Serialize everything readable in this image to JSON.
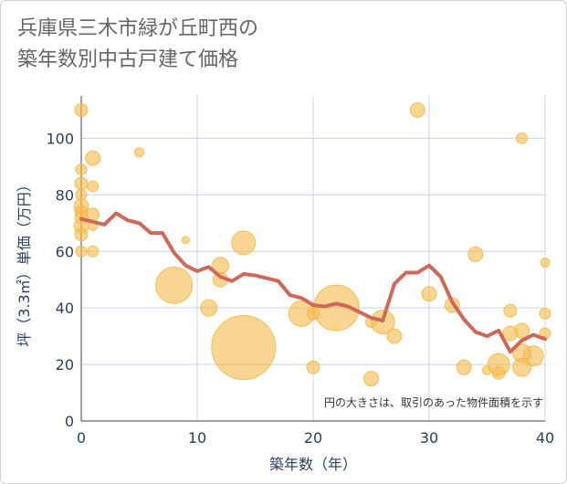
{
  "chart_data": {
    "type": "scatter",
    "title_lines": [
      "兵庫県三木市緑が丘町西の",
      "築年数別中古戸建て価格"
    ],
    "xlabel": "築年数（年）",
    "ylabel": "坪（3.3㎡）単価（万円）",
    "xlim": [
      0,
      40
    ],
    "ylim": [
      0,
      115
    ],
    "x_ticks": [
      0,
      10,
      20,
      30,
      40
    ],
    "y_ticks": [
      0,
      20,
      40,
      60,
      80,
      100
    ],
    "grid": true,
    "annotation": "円の大きさは、取引のあった物件面積を示す",
    "colors": {
      "bubble": "#f5b94a",
      "line": "#d0685a",
      "grid": "#c9d3e6"
    },
    "series": [
      {
        "kind": "bubble",
        "points": [
          {
            "x": 0,
            "y": 110,
            "s": 7
          },
          {
            "x": 0,
            "y": 89,
            "s": 6
          },
          {
            "x": 0,
            "y": 84,
            "s": 7
          },
          {
            "x": 0,
            "y": 80,
            "s": 6
          },
          {
            "x": 0,
            "y": 76,
            "s": 8
          },
          {
            "x": 0,
            "y": 74,
            "s": 7
          },
          {
            "x": 0,
            "y": 72,
            "s": 7
          },
          {
            "x": 0,
            "y": 69,
            "s": 8
          },
          {
            "x": 0,
            "y": 66,
            "s": 7
          },
          {
            "x": 0,
            "y": 60,
            "s": 6
          },
          {
            "x": 1,
            "y": 93,
            "s": 8
          },
          {
            "x": 1,
            "y": 83,
            "s": 6
          },
          {
            "x": 1,
            "y": 73,
            "s": 7
          },
          {
            "x": 1,
            "y": 69,
            "s": 5
          },
          {
            "x": 1,
            "y": 60,
            "s": 6
          },
          {
            "x": 5,
            "y": 95,
            "s": 5
          },
          {
            "x": 8,
            "y": 48,
            "s": 20
          },
          {
            "x": 9,
            "y": 64,
            "s": 4
          },
          {
            "x": 11,
            "y": 40,
            "s": 9
          },
          {
            "x": 12,
            "y": 55,
            "s": 9
          },
          {
            "x": 12,
            "y": 50,
            "s": 8
          },
          {
            "x": 14,
            "y": 63,
            "s": 13
          },
          {
            "x": 14,
            "y": 26,
            "s": 35
          },
          {
            "x": 19,
            "y": 38,
            "s": 14
          },
          {
            "x": 20,
            "y": 38,
            "s": 7
          },
          {
            "x": 20,
            "y": 19,
            "s": 7
          },
          {
            "x": 22,
            "y": 40,
            "s": 25
          },
          {
            "x": 25,
            "y": 35,
            "s": 6
          },
          {
            "x": 25,
            "y": 15,
            "s": 8
          },
          {
            "x": 26,
            "y": 35,
            "s": 13
          },
          {
            "x": 27,
            "y": 30,
            "s": 8
          },
          {
            "x": 29,
            "y": 110,
            "s": 8
          },
          {
            "x": 30,
            "y": 45,
            "s": 8
          },
          {
            "x": 32,
            "y": 41,
            "s": 8
          },
          {
            "x": 33,
            "y": 19,
            "s": 8
          },
          {
            "x": 34,
            "y": 59,
            "s": 8
          },
          {
            "x": 35,
            "y": 18,
            "s": 5
          },
          {
            "x": 36,
            "y": 20,
            "s": 12
          },
          {
            "x": 36,
            "y": 17,
            "s": 7
          },
          {
            "x": 37,
            "y": 39,
            "s": 7
          },
          {
            "x": 37,
            "y": 31,
            "s": 8
          },
          {
            "x": 38,
            "y": 100,
            "s": 6
          },
          {
            "x": 38,
            "y": 32,
            "s": 8
          },
          {
            "x": 38,
            "y": 24,
            "s": 10
          },
          {
            "x": 38,
            "y": 19,
            "s": 10
          },
          {
            "x": 39,
            "y": 23,
            "s": 11
          },
          {
            "x": 40,
            "y": 56,
            "s": 5
          },
          {
            "x": 40,
            "y": 38,
            "s": 6
          },
          {
            "x": 40,
            "y": 31,
            "s": 6
          }
        ]
      },
      {
        "kind": "line",
        "x": [
          0,
          1,
          2,
          3,
          4,
          5,
          6,
          7,
          8,
          9,
          10,
          11,
          12,
          13,
          14,
          15,
          16,
          17,
          18,
          19,
          20,
          21,
          22,
          23,
          24,
          25,
          26,
          27,
          28,
          29,
          30,
          31,
          32,
          33,
          34,
          35,
          36,
          37,
          38,
          39,
          40
        ],
        "y": [
          71.5,
          70.5,
          69.5,
          73.5,
          71,
          70,
          66.5,
          66.5,
          59.5,
          55,
          53,
          54.5,
          51,
          49.5,
          52,
          51.5,
          50.5,
          49.5,
          44.5,
          43.5,
          41,
          40.5,
          41.5,
          40.5,
          38.5,
          36.5,
          35.5,
          48.5,
          52.5,
          52.5,
          55,
          51,
          42,
          36,
          31.5,
          30,
          32,
          24.5,
          28.5,
          30.5,
          29
        ]
      }
    ]
  }
}
